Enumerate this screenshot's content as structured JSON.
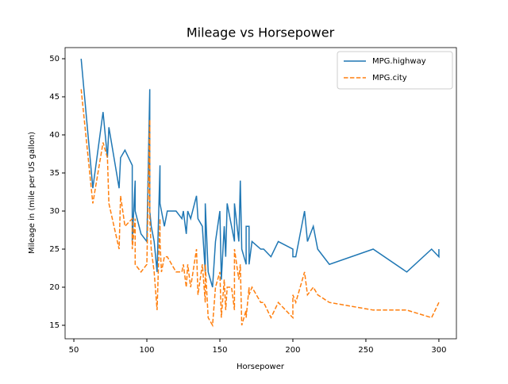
{
  "chart_data": {
    "type": "line",
    "title": "Mileage vs Horsepower",
    "xlabel": "Horsepower",
    "ylabel": "Mileage in (mile per US gallon)",
    "x": [
      55,
      63,
      70,
      73,
      74,
      81,
      82,
      85,
      90,
      90,
      92,
      92,
      96,
      100,
      102,
      102,
      103,
      105,
      107,
      109,
      109,
      110,
      112,
      114,
      120,
      124,
      125,
      127,
      128,
      130,
      134,
      135,
      138,
      140,
      140,
      142,
      145,
      147,
      150,
      151,
      153,
      154,
      155,
      158,
      160,
      160,
      163,
      164,
      165,
      168,
      168,
      170,
      170,
      172,
      178,
      180,
      185,
      190,
      200,
      200,
      202,
      208,
      210,
      214,
      217,
      225,
      255,
      278,
      295,
      300,
      300
    ],
    "series": [
      {
        "name": "MPG.highway",
        "color": "#1f77b4",
        "linestyle": "solid",
        "values": [
          50,
          33,
          43,
          37,
          41,
          33,
          37,
          38,
          36,
          26,
          34,
          30,
          27,
          26,
          46,
          30,
          28,
          26,
          22,
          36,
          31,
          30,
          28,
          30,
          30,
          29,
          30,
          27,
          30,
          29,
          32,
          29,
          28,
          22,
          31,
          22,
          20,
          26,
          30,
          21,
          28,
          24,
          31,
          28,
          26,
          31,
          26,
          34,
          25,
          23,
          28,
          28,
          23,
          26,
          25,
          25,
          24,
          26,
          25,
          24,
          24,
          30,
          26,
          28,
          25,
          23,
          25,
          22,
          25,
          24,
          25
        ]
      },
      {
        "name": "MPG.city",
        "color": "#ff7f0e",
        "linestyle": "dashed",
        "values": [
          46,
          31,
          39,
          37,
          31,
          25,
          32,
          28,
          29,
          25,
          29,
          23,
          22,
          23,
          42,
          29,
          25,
          22,
          17,
          29,
          26,
          22,
          24,
          24,
          22,
          22,
          23,
          20,
          23,
          20,
          25,
          19,
          23,
          18,
          23,
          16,
          15,
          20,
          22,
          16,
          21,
          17,
          20,
          20,
          17,
          25,
          21,
          23,
          15,
          17,
          16,
          20,
          19,
          20,
          18,
          18,
          16,
          18,
          16,
          19,
          18,
          22,
          19,
          20,
          19,
          18,
          17,
          17,
          16,
          18,
          18
        ]
      }
    ],
    "xlim": [
      44,
      312
    ],
    "ylim": [
      13.23,
      51.46
    ],
    "xticks": [
      50,
      100,
      150,
      200,
      250,
      300
    ],
    "yticks": [
      15,
      20,
      25,
      30,
      35,
      40,
      45,
      50
    ],
    "legend": "upper right"
  }
}
